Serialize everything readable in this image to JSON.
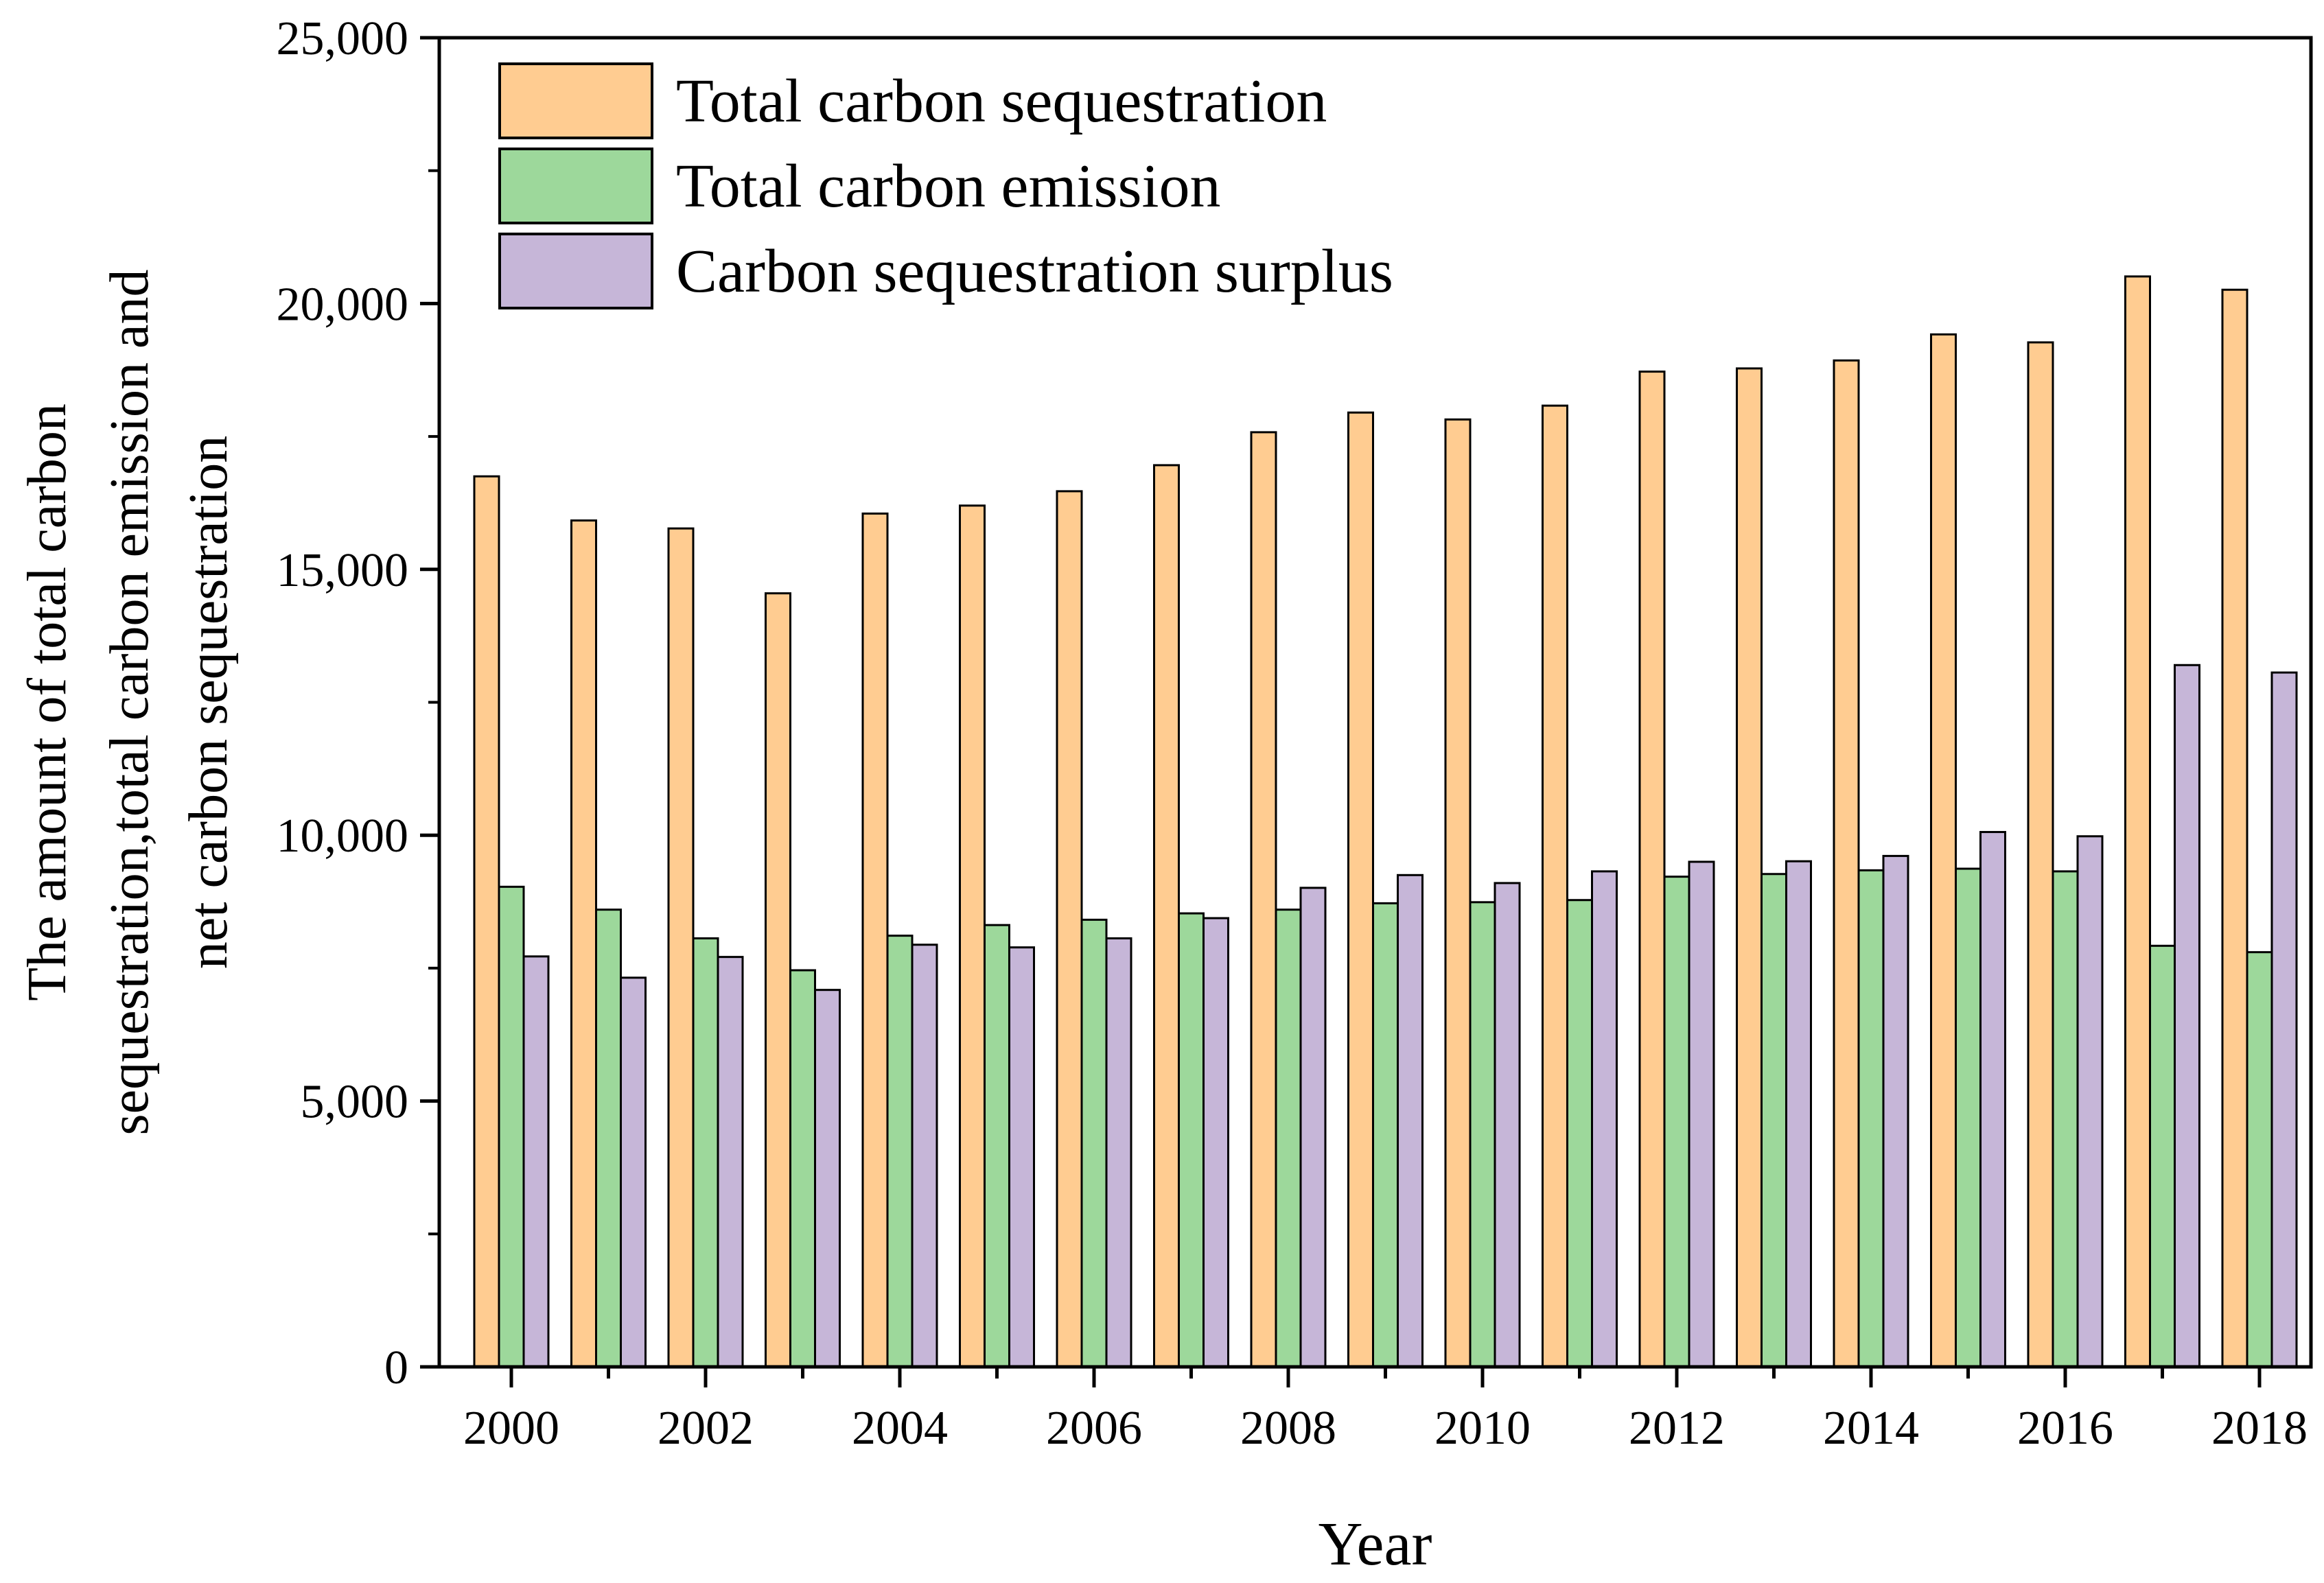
{
  "chart_data": {
    "type": "bar",
    "title": "",
    "xlabel": "Year",
    "ylabel_lines": [
      "The amount of total carbon",
      "sequestration,total carbon emission and",
      "net carbon sequestration"
    ],
    "ylim": [
      0,
      25000
    ],
    "yticks": [
      0,
      5000,
      10000,
      15000,
      20000,
      25000
    ],
    "ytick_labels": [
      "0",
      "5,000",
      "10,000",
      "15,000",
      "20,000",
      "25,000"
    ],
    "categories": [
      2000,
      2001,
      2002,
      2003,
      2004,
      2005,
      2006,
      2007,
      2008,
      2009,
      2010,
      2011,
      2012,
      2013,
      2014,
      2015,
      2016,
      2017,
      2018
    ],
    "xtick_labels": [
      "2000",
      "2002",
      "2004",
      "2006",
      "2008",
      "2010",
      "2012",
      "2014",
      "2016",
      "2018"
    ],
    "legend_position": "top-left",
    "grid": false,
    "series": [
      {
        "name": "Total carbon sequestration",
        "color": "#FFCC91",
        "values": [
          16750,
          15920,
          15770,
          14550,
          16050,
          16200,
          16470,
          16960,
          17580,
          17950,
          17820,
          18080,
          18720,
          18780,
          18930,
          19420,
          19270,
          20510,
          20260
        ]
      },
      {
        "name": "Total carbon emission",
        "color": "#9DD89B",
        "values": [
          9030,
          8600,
          8060,
          7460,
          8110,
          8310,
          8410,
          8530,
          8600,
          8720,
          8740,
          8780,
          9220,
          9270,
          9340,
          9370,
          9320,
          7920,
          7800
        ]
      },
      {
        "name": "Carbon sequestration surplus",
        "color": "#C6B6D8",
        "values": [
          7720,
          7320,
          7710,
          7090,
          7940,
          7890,
          8060,
          8440,
          9010,
          9250,
          9100,
          9320,
          9500,
          9510,
          9610,
          10060,
          9980,
          13200,
          13060
        ]
      }
    ]
  }
}
